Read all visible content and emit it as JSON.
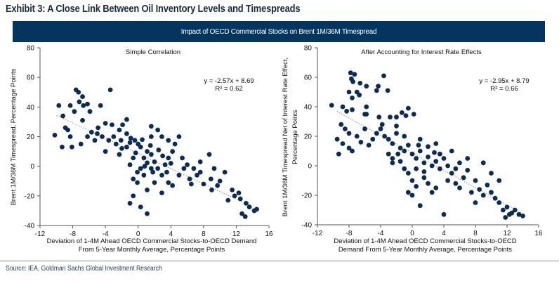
{
  "title": "Exhibit 3: A Close Link Between Oil Inventory Levels and Timespreads",
  "banner": "Impact of OECD Commercial Stocks on Brent 1M/36M Timespread",
  "source": "Source: IEA, Goldman Sachs Global Investment Research",
  "colors": {
    "dot": "#0d2c54",
    "banner": "#04355f",
    "trend": "#8a8a8a"
  },
  "chart_data": [
    {
      "type": "scatter",
      "title": "Simple Correlation",
      "xlabel": [
        "Deviation of 1-4M Ahead OECD Commercial Stocks-to-OECD Demand",
        "From 5-Year Monthly Average, Percentage Points"
      ],
      "ylabel": [
        "Brent 1M/36M Timespread, Percentage Points"
      ],
      "xlim": [
        -12,
        16
      ],
      "ylim": [
        -40,
        80
      ],
      "xticks": [
        -12,
        -8,
        -4,
        0,
        4,
        8,
        12,
        16
      ],
      "yticks": [
        -40,
        -20,
        0,
        20,
        40,
        60,
        80
      ],
      "equation": "y = -2.57x + 8.69",
      "r2": "R² = 0.62",
      "trend": {
        "slope": -2.57,
        "intercept": 8.69,
        "x_range": [
          -10,
          14
        ]
      },
      "points": [
        [
          -7.6,
          51.6
        ],
        [
          -7.3,
          50
        ],
        [
          -3.4,
          51.6
        ],
        [
          -6.8,
          47
        ],
        [
          -8.3,
          41
        ],
        [
          -9.7,
          41
        ],
        [
          -6.2,
          42
        ],
        [
          -6.7,
          41
        ],
        [
          -7.2,
          43.5
        ],
        [
          -4.6,
          41
        ],
        [
          -7.8,
          37
        ],
        [
          -5.9,
          37
        ],
        [
          -9.2,
          34
        ],
        [
          -6.8,
          31
        ],
        [
          -8.9,
          26
        ],
        [
          -10.2,
          21
        ],
        [
          -8.6,
          24.5
        ],
        [
          -8.3,
          20
        ],
        [
          -8.1,
          13
        ],
        [
          -9.3,
          13
        ],
        [
          -7,
          15
        ],
        [
          -5.7,
          23
        ],
        [
          -4.9,
          26
        ],
        [
          -4,
          29
        ],
        [
          -3.2,
          28
        ],
        [
          -2.3,
          24.5
        ],
        [
          -1.9,
          28
        ],
        [
          -1.4,
          22
        ],
        [
          -0.9,
          19
        ],
        [
          -0.4,
          17.5
        ],
        [
          0,
          15
        ],
        [
          0.3,
          13
        ],
        [
          1.1,
          10
        ],
        [
          0.7,
          5.6
        ],
        [
          1.6,
          8
        ],
        [
          2,
          3
        ],
        [
          2.4,
          -1.5
        ],
        [
          3.3,
          1
        ],
        [
          3.7,
          5.6
        ],
        [
          4.2,
          10
        ],
        [
          2.9,
          20
        ],
        [
          1.6,
          20
        ],
        [
          -0.6,
          5.6
        ],
        [
          -1,
          1
        ],
        [
          0.3,
          -1.5
        ],
        [
          0.7,
          -6
        ],
        [
          -0.1,
          -11
        ],
        [
          1.1,
          -16
        ],
        [
          2,
          -11
        ],
        [
          -0.6,
          -20
        ],
        [
          0.3,
          -27.5
        ],
        [
          1.1,
          -32
        ],
        [
          -1,
          -25
        ],
        [
          2.9,
          -18
        ],
        [
          3.7,
          -11
        ],
        [
          5,
          -6
        ],
        [
          5.6,
          -1.5
        ],
        [
          6.3,
          -8.6
        ],
        [
          7.2,
          -6
        ],
        [
          8,
          -12
        ],
        [
          8.9,
          -8.6
        ],
        [
          9.7,
          -13
        ],
        [
          8.7,
          8
        ],
        [
          10.6,
          -4
        ],
        [
          11.5,
          -16
        ],
        [
          12.3,
          -18
        ],
        [
          13.2,
          -25
        ],
        [
          13.6,
          -27.5
        ],
        [
          14.2,
          -30
        ],
        [
          14.5,
          -29
        ],
        [
          11,
          -23
        ],
        [
          12.7,
          -32
        ],
        [
          13.1,
          -34
        ],
        [
          5.4,
          5.6
        ],
        [
          4.5,
          15
        ],
        [
          -2.7,
          15
        ],
        [
          -3.6,
          17.5
        ],
        [
          -4.4,
          20
        ],
        [
          -5.3,
          17.5
        ],
        [
          -6.2,
          20
        ],
        [
          -4,
          10
        ],
        [
          -2.3,
          8
        ],
        [
          -1.4,
          13
        ],
        [
          3.7,
          17.5
        ],
        [
          2.4,
          24.5
        ],
        [
          5,
          20
        ],
        [
          1.6,
          27
        ],
        [
          -1.4,
          31.6
        ],
        [
          -2.1,
          17.5
        ],
        [
          6,
          1
        ],
        [
          6.8,
          -1.5
        ],
        [
          7.6,
          -4
        ],
        [
          7.6,
          3
        ],
        [
          9.3,
          -1.5
        ],
        [
          1.6,
          -1.5
        ],
        [
          2.9,
          -6
        ],
        [
          4.2,
          -13
        ],
        [
          -0.6,
          -8.6
        ],
        [
          -0.1,
          -4
        ],
        [
          1.1,
          2.3
        ],
        [
          -5,
          22
        ],
        [
          -3,
          20
        ],
        [
          -2,
          12
        ],
        [
          -1,
          16
        ],
        [
          0.5,
          18
        ],
        [
          1.5,
          14
        ],
        [
          2.5,
          11
        ],
        [
          3,
          7
        ],
        [
          4,
          2
        ],
        [
          -0.3,
          9
        ],
        [
          0.8,
          0
        ],
        [
          1.8,
          -4
        ],
        [
          3.5,
          -4
        ],
        [
          6.5,
          -12
        ],
        [
          9,
          -16
        ],
        [
          10,
          -10
        ],
        [
          11.8,
          -20
        ],
        [
          12.5,
          -22
        ]
      ]
    },
    {
      "type": "scatter",
      "title": "After Accounting for Interest Rate Effects",
      "xlabel": [
        "Deviation of 1-4M Ahead OECD Commercial Stocks-to-OECD",
        "Demand From 5-Year Monthly Average, Percentage Points"
      ],
      "ylabel": [
        "Brent 1M/36M Timespread Net of Interest Rate Effect,",
        "Percentage Points"
      ],
      "xlim": [
        -12,
        16
      ],
      "ylim": [
        -40,
        80
      ],
      "xticks": [
        -12,
        -8,
        -4,
        0,
        4,
        8,
        12,
        16
      ],
      "yticks": [
        -40,
        -20,
        0,
        20,
        40,
        60,
        80
      ],
      "equation": "y = -2.95x + 8.79",
      "r2": "R² = 0.66",
      "trend": {
        "slope": -2.95,
        "intercept": 8.79,
        "x_range": [
          -9.5,
          14
        ]
      },
      "points": [
        [
          -7.8,
          63
        ],
        [
          -7.3,
          62
        ],
        [
          -7.7,
          59
        ],
        [
          -7.5,
          57
        ],
        [
          -6.6,
          56
        ],
        [
          -5.8,
          54
        ],
        [
          -4.5,
          51
        ],
        [
          -4.3,
          54
        ],
        [
          -3.6,
          61
        ],
        [
          -3.1,
          51
        ],
        [
          -8,
          50
        ],
        [
          -7,
          50
        ],
        [
          -6.7,
          48
        ],
        [
          -7.6,
          46
        ],
        [
          -10.2,
          41
        ],
        [
          -8.8,
          40
        ],
        [
          -7.6,
          38
        ],
        [
          -5.8,
          40
        ],
        [
          -5.8,
          35
        ],
        [
          -6,
          35
        ],
        [
          -8.3,
          37
        ],
        [
          -4.2,
          33
        ],
        [
          -2.8,
          33
        ],
        [
          -2,
          33
        ],
        [
          -1.3,
          36
        ],
        [
          -0.8,
          34
        ],
        [
          -0.5,
          39
        ],
        [
          0.2,
          35
        ],
        [
          -9,
          28
        ],
        [
          -8.5,
          25
        ],
        [
          -8,
          22
        ],
        [
          -9.5,
          18
        ],
        [
          -8.8,
          15
        ],
        [
          -8,
          12
        ],
        [
          -7.6,
          10
        ],
        [
          -9.3,
          8
        ],
        [
          -7,
          20
        ],
        [
          -6.5,
          16
        ],
        [
          -5.5,
          14
        ],
        [
          -5,
          18
        ],
        [
          -4.5,
          22
        ],
        [
          -4,
          25
        ],
        [
          -3.5,
          20
        ],
        [
          -3,
          18
        ],
        [
          -2.5,
          15
        ],
        [
          -2,
          22
        ],
        [
          -1.5,
          12
        ],
        [
          -1,
          10
        ],
        [
          -0.5,
          14
        ],
        [
          0,
          8
        ],
        [
          0.5,
          5
        ],
        [
          1,
          10
        ],
        [
          1.5,
          2
        ],
        [
          2,
          6
        ],
        [
          2.5,
          0
        ],
        [
          3,
          3
        ],
        [
          3.5,
          -2
        ],
        [
          4,
          5
        ],
        [
          4.5,
          0
        ],
        [
          -3,
          8
        ],
        [
          -2.5,
          5
        ],
        [
          -1.5,
          3
        ],
        [
          -1,
          -2
        ],
        [
          -0.5,
          -5
        ],
        [
          0,
          -10
        ],
        [
          0.5,
          -14
        ],
        [
          0,
          -20
        ],
        [
          1,
          -27
        ],
        [
          -0.5,
          -18
        ],
        [
          1.5,
          -8
        ],
        [
          2,
          -12
        ],
        [
          2.5,
          -18
        ],
        [
          3,
          -15
        ],
        [
          4,
          -33
        ],
        [
          4.5,
          -10
        ],
        [
          5,
          -5
        ],
        [
          5.5,
          -12
        ],
        [
          6,
          -15
        ],
        [
          6.5,
          -8
        ],
        [
          7,
          -3
        ],
        [
          7.5,
          -18
        ],
        [
          8,
          -10
        ],
        [
          8.5,
          -16
        ],
        [
          9,
          -20
        ],
        [
          9.5,
          -13
        ],
        [
          10,
          -18
        ],
        [
          10.5,
          -22
        ],
        [
          11,
          -25
        ],
        [
          11.5,
          -30
        ],
        [
          12,
          -28
        ],
        [
          12.3,
          -33
        ],
        [
          11.8,
          -35
        ],
        [
          12.6,
          -32
        ],
        [
          13,
          -30
        ],
        [
          13.5,
          -33
        ],
        [
          14,
          -34
        ],
        [
          10,
          -5
        ],
        [
          9,
          2
        ],
        [
          5,
          10
        ],
        [
          3,
          15
        ],
        [
          1,
          18
        ],
        [
          2,
          13
        ],
        [
          6,
          2
        ],
        [
          7,
          5
        ],
        [
          -2.5,
          2
        ],
        [
          0.5,
          -2
        ],
        [
          1.5,
          -4
        ],
        [
          -1,
          20
        ],
        [
          -6,
          25
        ],
        [
          -3.8,
          28
        ],
        [
          3.5,
          8
        ],
        [
          8,
          -25
        ],
        [
          11,
          -10
        ],
        [
          -2,
          27
        ],
        [
          0.8,
          14
        ],
        [
          2.8,
          9
        ],
        [
          -1.8,
          8
        ],
        [
          5.5,
          -2
        ]
      ]
    }
  ]
}
